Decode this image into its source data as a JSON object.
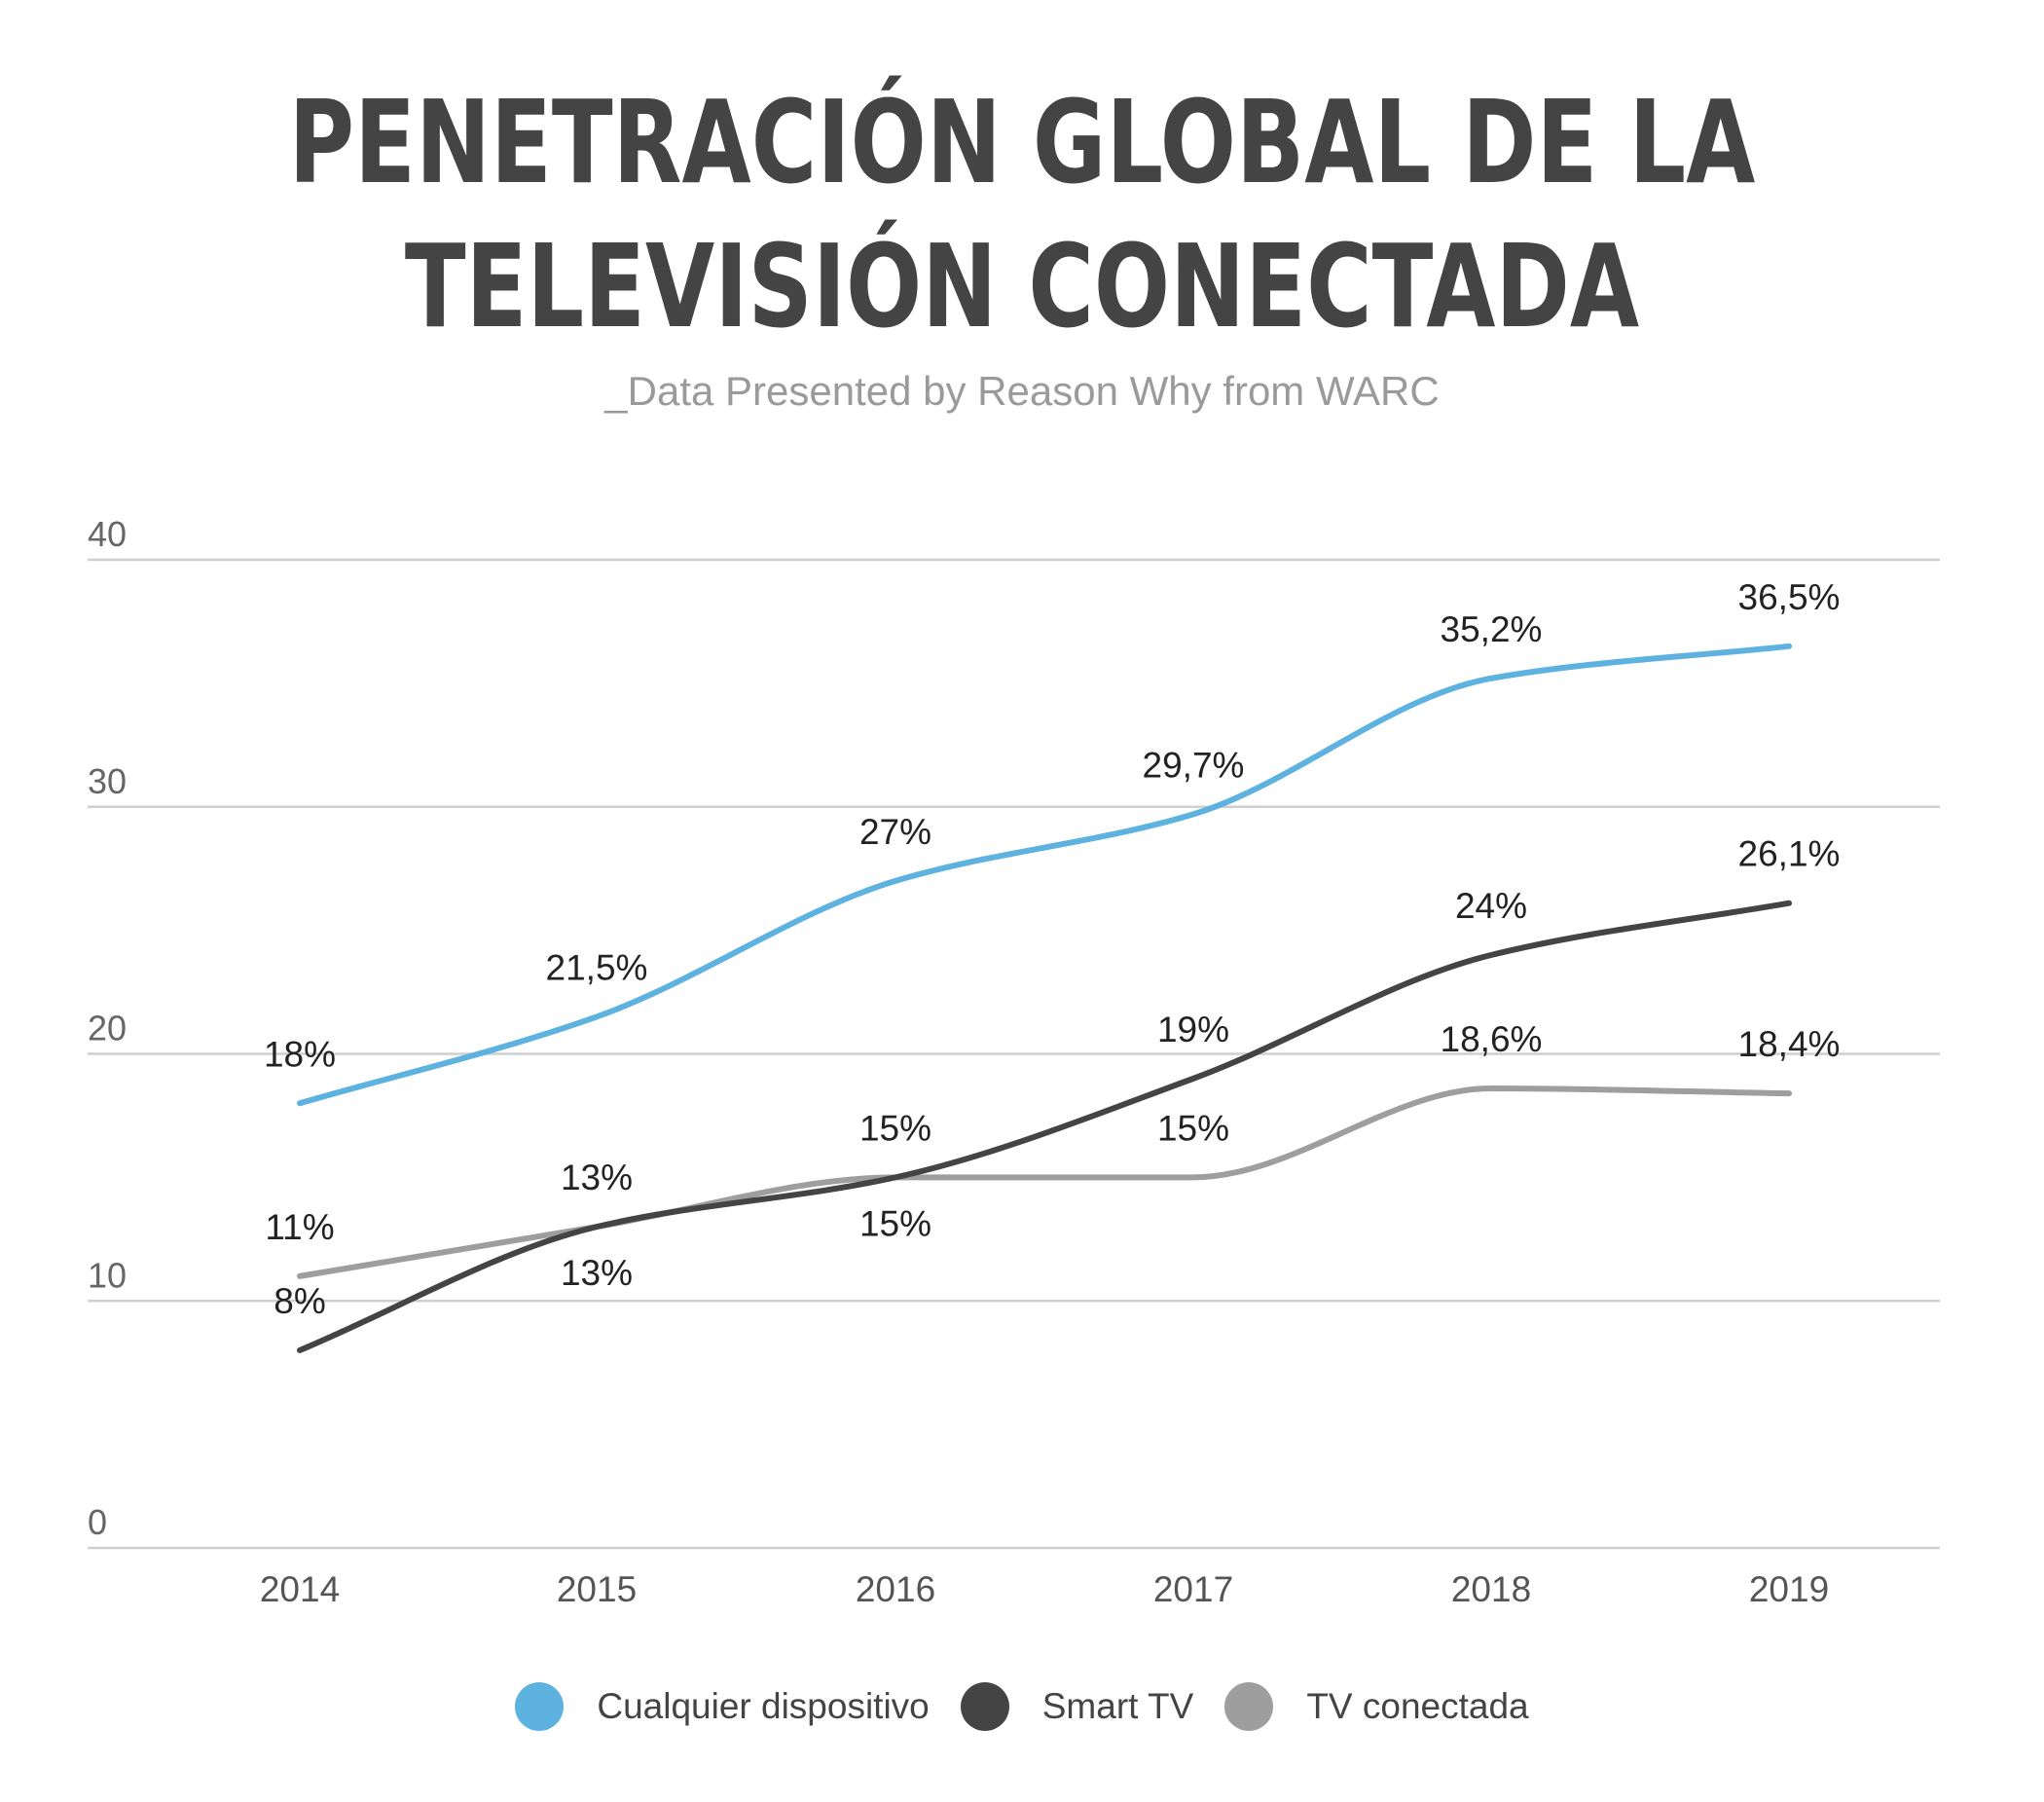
{
  "chart_data": {
    "type": "line",
    "title_lines": [
      "PENETRACIÓN GLOBAL DE LA",
      "TELEVISIÓN CONECTADA"
    ],
    "subtitle": "_Data Presented by Reason Why from WARC",
    "x": [
      "2014",
      "2015",
      "2016",
      "2017",
      "2018",
      "2019"
    ],
    "y_ticks": [
      "0",
      "10",
      "20",
      "30",
      "40"
    ],
    "ylim": [
      0,
      40
    ],
    "grid": true,
    "legend_position": "bottom",
    "series": [
      {
        "name": "Cualquier dispositivo",
        "color": "#5db2e0",
        "values": [
          18,
          21.5,
          27,
          29.7,
          35.2,
          36.5
        ],
        "labels": [
          "18%",
          "21,5%",
          "27%",
          "29,7%",
          "35,2%",
          "36,5%"
        ]
      },
      {
        "name": "Smart TV",
        "color": "#444444",
        "values": [
          8,
          13,
          15,
          19,
          24,
          26.1
        ],
        "labels": [
          "8%",
          "13%",
          "15%",
          "19%",
          "24%",
          "26,1%"
        ]
      },
      {
        "name": "TV conectada",
        "color": "#9e9e9e",
        "values": [
          11,
          13,
          15,
          15,
          18.6,
          18.4
        ],
        "labels": [
          "11%",
          "13%",
          "15%",
          "15%",
          "18,6%",
          "18,4%"
        ]
      }
    ]
  }
}
